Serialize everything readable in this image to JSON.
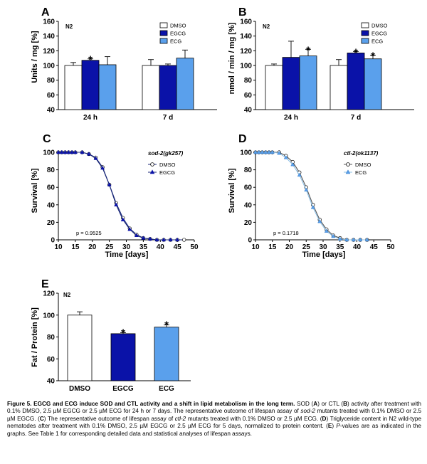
{
  "colors": {
    "dmso": "#ffffff",
    "egcg": "#0a12a8",
    "ecg": "#5aa0ec",
    "ecg_line": "#8ec0e6",
    "surv_dark": "#1c2a7a"
  },
  "panels": {
    "A": {
      "letter": "A",
      "strain": "N2",
      "ylabel": "Units / mg [%]"
    },
    "B": {
      "letter": "B",
      "strain": "N2",
      "ylabel": "nmol / min / mg [%]"
    },
    "C": {
      "letter": "C",
      "mutant": "sod-2(gk257)",
      "pvalue": "p = 0.9525",
      "xlabel": "Time [days]",
      "ylabel": "Survival [%]"
    },
    "D": {
      "letter": "D",
      "mutant": "ctl-2(ok1137)",
      "pvalue": "p = 0.1718",
      "xlabel": "Time [days]",
      "ylabel": "Survival [%]"
    },
    "E": {
      "letter": "E",
      "strain": "N2",
      "ylabel": "Fat / Protein [%]"
    }
  },
  "legend_labels": {
    "dmso": "DMSO",
    "egcg": "EGCG",
    "ecg": "ECG"
  },
  "chart_data": [
    {
      "id": "A",
      "type": "bar",
      "categories": [
        "24 h",
        "7 d"
      ],
      "series": [
        {
          "name": "DMSO",
          "values": [
            100,
            100
          ],
          "err": [
            4,
            8
          ]
        },
        {
          "name": "EGCG",
          "values": [
            107,
            100
          ],
          "err": [
            2,
            2
          ]
        },
        {
          "name": "ECG",
          "values": [
            101,
            110
          ],
          "err": [
            11,
            11
          ]
        }
      ],
      "significant": [
        [
          0,
          1
        ]
      ],
      "ylabel": "Units / mg [%]",
      "ylim": [
        40,
        160
      ],
      "yticks": [
        40,
        60,
        80,
        100,
        120,
        140,
        160
      ],
      "legend": "top-right"
    },
    {
      "id": "B",
      "type": "bar",
      "categories": [
        "24 h",
        "7 d"
      ],
      "series": [
        {
          "name": "DMSO",
          "values": [
            100,
            100
          ],
          "err": [
            2,
            8
          ]
        },
        {
          "name": "EGCG",
          "values": [
            111,
            117
          ],
          "err": [
            22,
            2
          ]
        },
        {
          "name": "ECG",
          "values": [
            113,
            109
          ],
          "err": [
            9,
            5
          ]
        }
      ],
      "significant": [
        [
          0,
          2
        ],
        [
          1,
          1
        ],
        [
          1,
          2
        ]
      ],
      "ylabel": "nmol / min / mg [%]",
      "ylim": [
        40,
        160
      ],
      "yticks": [
        40,
        60,
        80,
        100,
        120,
        140,
        160
      ],
      "legend": "top-right"
    },
    {
      "id": "C",
      "type": "line",
      "x": [
        10,
        11,
        12,
        13,
        14,
        15,
        17,
        19,
        21,
        23,
        25,
        27,
        29,
        31,
        33,
        35,
        37,
        39,
        41,
        43,
        45,
        47
      ],
      "series": [
        {
          "name": "DMSO",
          "values": [
            100,
            100,
            100,
            100,
            100,
            100,
            100,
            98,
            94,
            83,
            63,
            42,
            25,
            13,
            6,
            2,
            1,
            0,
            0,
            0,
            0,
            0
          ]
        },
        {
          "name": "EGCG",
          "values": [
            100,
            100,
            100,
            100,
            100,
            100,
            100,
            98,
            93,
            82,
            63,
            40,
            23,
            12,
            5,
            2,
            1,
            0,
            0,
            0,
            0,
            null
          ]
        }
      ],
      "xlabel": "Time [days]",
      "ylabel": "Survival [%]",
      "xlim": [
        10,
        50
      ],
      "ylim": [
        0,
        100
      ],
      "xticks": [
        10,
        15,
        20,
        25,
        30,
        35,
        40,
        45,
        50
      ],
      "yticks": [
        0,
        20,
        40,
        60,
        80,
        100
      ]
    },
    {
      "id": "D",
      "type": "line",
      "x": [
        10,
        11,
        12,
        13,
        14,
        15,
        17,
        19,
        21,
        23,
        25,
        27,
        29,
        31,
        33,
        35,
        37,
        39,
        41,
        43
      ],
      "series": [
        {
          "name": "DMSO",
          "values": [
            100,
            100,
            100,
            100,
            100,
            100,
            100,
            96,
            89,
            77,
            60,
            40,
            23,
            12,
            5,
            2,
            0,
            0,
            0,
            0
          ]
        },
        {
          "name": "ECG",
          "values": [
            100,
            100,
            100,
            100,
            100,
            100,
            99,
            94,
            86,
            74,
            57,
            37,
            21,
            10,
            4,
            1,
            0,
            0,
            0,
            0
          ]
        }
      ],
      "xlabel": "Time [days]",
      "ylabel": "Survival [%]",
      "xlim": [
        10,
        50
      ],
      "ylim": [
        0,
        100
      ],
      "xticks": [
        10,
        15,
        20,
        25,
        30,
        35,
        40,
        45,
        50
      ],
      "yticks": [
        0,
        20,
        40,
        60,
        80,
        100
      ]
    },
    {
      "id": "E",
      "type": "bar",
      "categories": [
        "DMSO",
        "EGCG",
        "ECG"
      ],
      "values": [
        100,
        83,
        89
      ],
      "err": [
        3,
        1,
        2
      ],
      "significant": [
        1,
        2
      ],
      "ylabel": "Fat / Protein [%]",
      "ylim": [
        40,
        120
      ],
      "yticks": [
        40,
        60,
        80,
        100,
        120
      ]
    }
  ],
  "caption": {
    "title": "Figure 5. EGCG and ECG induce SOD and CTL activity and a shift in lipid metabolism in the long term.",
    "l1": " SOD (",
    "l2": "A",
    "l3": ") or CTL (",
    "l4": "B",
    "l5": ") activity after treatment with 0.1% DMSO, 2.5 µM EGCG or 2.5 µM ECG for 24 h or 7 days. The representative outcome of lifespan assay of ",
    "l6": "sod-2",
    "l7": " mutants treated with 0.1% DMSO or 2.5 µM EGCG. (",
    "l8": "C",
    "l9": ") The representative outcome of lifespan assay of ",
    "l10": "ctl-2",
    "l11": " mutants treated with 0.1% DMSO or 2.5 µM ECG. (",
    "l12": "D",
    "l13": ") Triglyceride content in N2 wild-type nematodes after treatment with 0.1% DMSO, 2.5 µM EGCG or 2.5 µM ECG for 5 days, normalized to protein content. (",
    "l14": "E",
    "l15": ") ",
    "l16": "P",
    "l17": "-values are as indicated in the graphs. See Table 1 for corresponding detailed data and statistical analyses of lifespan assays."
  }
}
